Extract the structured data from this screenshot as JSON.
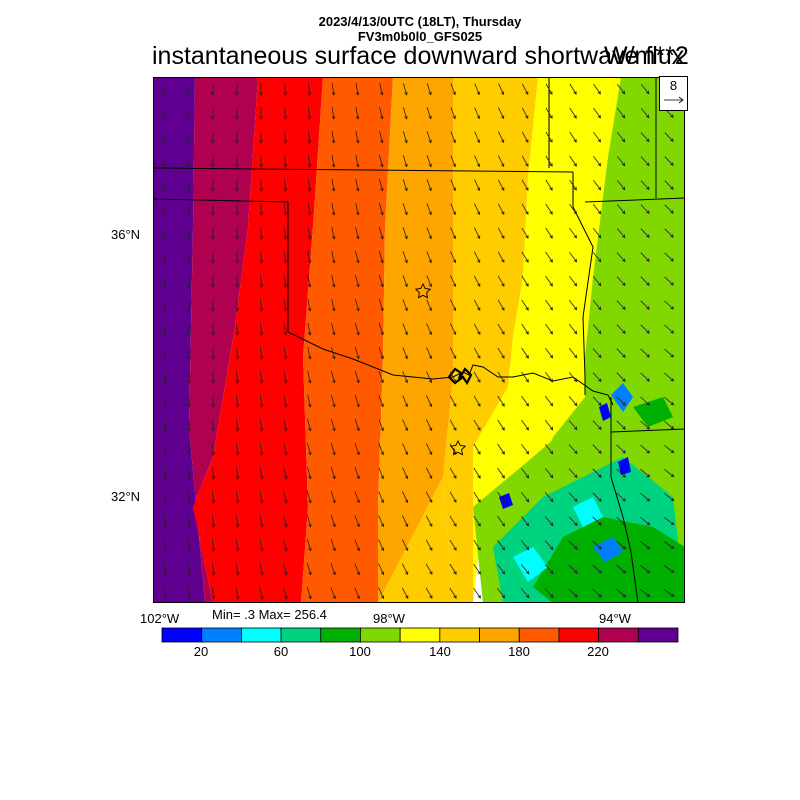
{
  "header": {
    "date_line": "2023/4/13/0UTC (18LT), Thursday",
    "model_line": "FV3m0b0l0_GFS025",
    "title": "instantaneous surface downward shortwave flux",
    "units": "W/m**2"
  },
  "map": {
    "lat_labels": [
      "36°N",
      "32°N"
    ],
    "lon_labels": [
      "102°W",
      "98°W",
      "94°W"
    ],
    "reference_vector": {
      "value": "8"
    },
    "stats": "Min= .3 Max= 256.4",
    "markers": [
      "star",
      "star"
    ]
  },
  "colorbar": {
    "colors": [
      "#0000ff",
      "#0080ff",
      "#00ffff",
      "#00d380",
      "#00b000",
      "#80d800",
      "#ffff00",
      "#ffcc00",
      "#ffa500",
      "#ff5a00",
      "#ff0000",
      "#b00050",
      "#600090"
    ],
    "tick_labels": [
      "20",
      "60",
      "100",
      "140",
      "180",
      "220"
    ]
  },
  "bands": {
    "colors": [
      "#600090",
      "#b00050",
      "#ff0000",
      "#ff5a00",
      "#ffa500",
      "#ffcc00",
      "#ffff00",
      "#80d800"
    ]
  }
}
